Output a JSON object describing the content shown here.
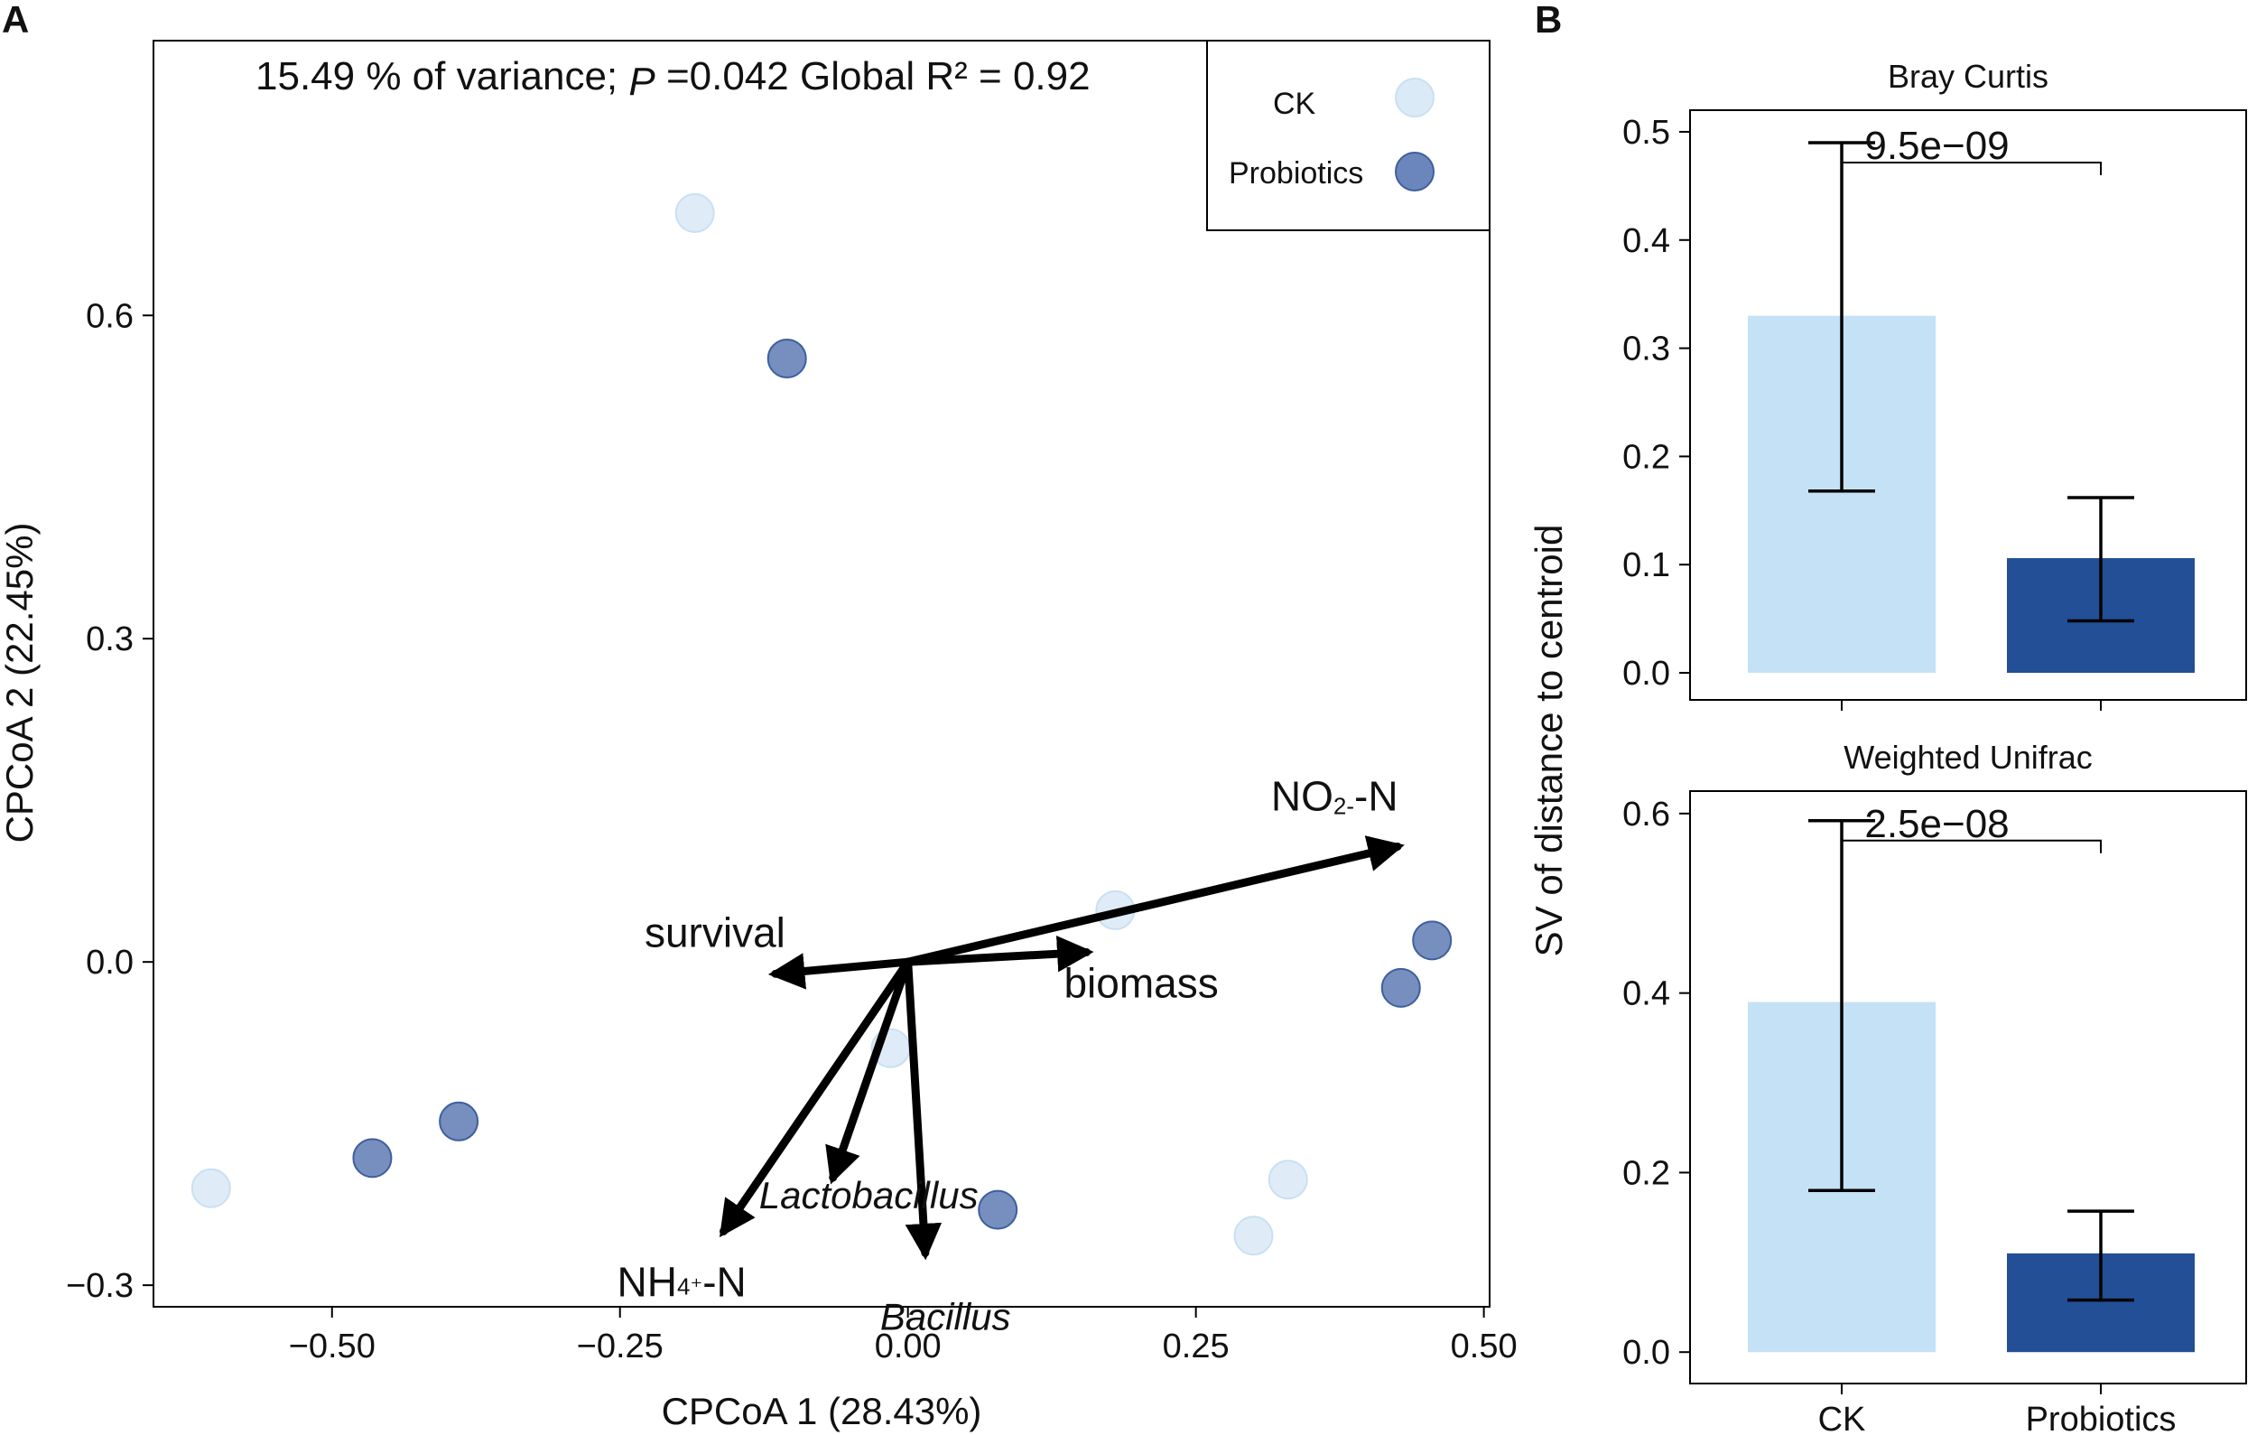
{
  "panel_a": {
    "letter": "A",
    "annotation_prefix": "15.49 % of variance; ",
    "annotation_p": "P",
    "annotation_suffix": " =0.042 Global R² = 0.92"
  },
  "panel_b": {
    "letter": "B",
    "ylabel": "SV of distance to centroid"
  },
  "colors": {
    "ck_point": "#dbeaf7",
    "ck_point_edge": "#c9e0f2",
    "probiotics_point": "#6a86ba",
    "probiotics_point_edge": "#3e5f9e",
    "ck_bar": "#c5e1f5",
    "probiotics_bar": "#224f96",
    "arrow": "#000000"
  },
  "chart_data": [
    {
      "type": "scatter",
      "xlabel": "CPCoA 1 (28.43%)",
      "ylabel": "CPCoA 2 (22.45%)",
      "xlim": [
        -0.655,
        0.505
      ],
      "ylim": [
        -0.32,
        0.855
      ],
      "x_ticks": [
        -0.5,
        -0.25,
        0.0,
        0.25,
        0.5
      ],
      "x_tick_labels": [
        "−0.50",
        "−0.25",
        "0.00",
        "0.25",
        "0.50"
      ],
      "y_ticks": [
        -0.3,
        0.0,
        0.3,
        0.6
      ],
      "y_tick_labels": [
        "−0.3",
        "0.0",
        "0.3",
        "0.6"
      ],
      "grid": false,
      "legend_placement": "top-right",
      "series": [
        {
          "name": "CK",
          "points": [
            {
              "x": -0.185,
              "y": 0.695
            },
            {
              "x": 0.18,
              "y": 0.048
            },
            {
              "x": -0.015,
              "y": -0.08
            },
            {
              "x": -0.605,
              "y": -0.21
            },
            {
              "x": 0.33,
              "y": -0.202
            },
            {
              "x": 0.3,
              "y": -0.254
            }
          ]
        },
        {
          "name": "Probiotics",
          "points": [
            {
              "x": -0.105,
              "y": 0.56
            },
            {
              "x": 0.455,
              "y": 0.02
            },
            {
              "x": 0.428,
              "y": -0.024
            },
            {
              "x": -0.39,
              "y": -0.148
            },
            {
              "x": -0.465,
              "y": -0.182
            },
            {
              "x": 0.078,
              "y": -0.23
            }
          ]
        }
      ],
      "arrows": [
        {
          "label": "NO",
          "label_sub": "2-",
          "label_tail": "-N",
          "italic": false,
          "end": [
            0.425,
            0.107
          ]
        },
        {
          "label": "survival",
          "label_sub": "",
          "label_tail": "",
          "italic": false,
          "end": [
            -0.115,
            -0.011
          ]
        },
        {
          "label": "biomass",
          "label_sub": "",
          "label_tail": "",
          "italic": false,
          "end": [
            0.155,
            0.009
          ]
        },
        {
          "label": "NH",
          "label_sub": "4⁺",
          "label_tail": "-N",
          "italic": false,
          "end": [
            -0.16,
            -0.25
          ]
        },
        {
          "label": "Lactobacillus",
          "label_sub": "",
          "label_tail": "",
          "italic": true,
          "end": [
            -0.065,
            -0.2
          ]
        },
        {
          "label": "Bacillus",
          "label_sub": "",
          "label_tail": "",
          "italic": true,
          "end": [
            0.015,
            -0.27
          ]
        }
      ]
    },
    {
      "type": "bar",
      "title": "Bray Curtis",
      "categories": [
        "CK",
        "Probiotics"
      ],
      "values": [
        0.33,
        0.106
      ],
      "error_low": [
        0.168,
        0.048
      ],
      "error_high": [
        0.49,
        0.162
      ],
      "ylim": [
        -0.025,
        0.52
      ],
      "y_ticks": [
        0.0,
        0.1,
        0.2,
        0.3,
        0.4,
        0.5
      ],
      "y_tick_labels": [
        "0.0",
        "0.1",
        "0.2",
        "0.3",
        "0.4",
        "0.5"
      ],
      "significance": "9.5e−09",
      "significance_y": 0.49,
      "show_x_tick_labels": false
    },
    {
      "type": "bar",
      "title": "Weighted Unifrac",
      "categories": [
        "CK",
        "Probiotics"
      ],
      "values": [
        0.39,
        0.11
      ],
      "error_low": [
        0.18,
        0.058
      ],
      "error_high": [
        0.592,
        0.157
      ],
      "ylim": [
        -0.035,
        0.625
      ],
      "y_ticks": [
        0.0,
        0.2,
        0.4,
        0.6
      ],
      "y_tick_labels": [
        "0.0",
        "0.2",
        "0.4",
        "0.6"
      ],
      "significance": "2.5e−08",
      "significance_y": 0.592,
      "show_x_tick_labels": true
    }
  ]
}
